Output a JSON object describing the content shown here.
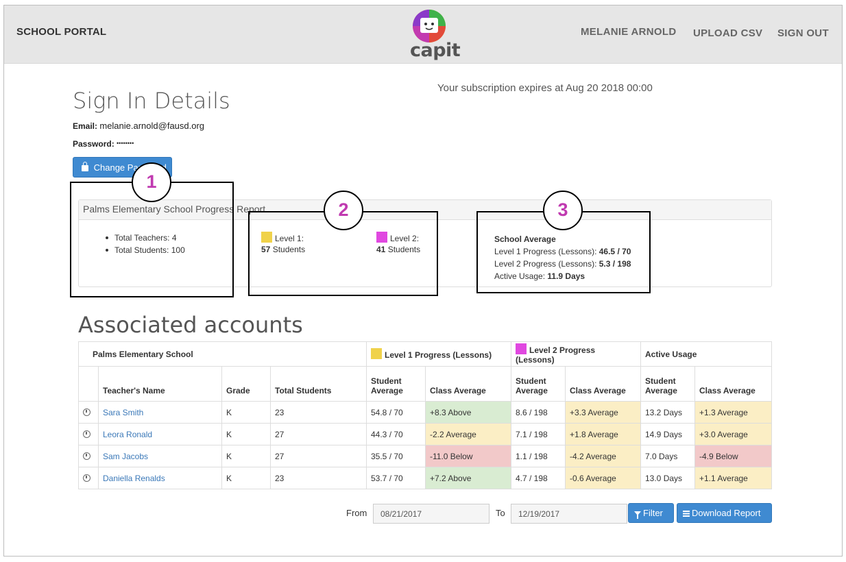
{
  "header": {
    "brand": "SCHOOL PORTAL",
    "logo_text": "capit",
    "nav": [
      "MELANIE ARNOLD",
      "UPLOAD CSV",
      "SIGN OUT"
    ]
  },
  "signin": {
    "title": "Sign In Details",
    "subscription": "Your subscription expires at Aug 20 2018 00:00",
    "email_label": "Email:",
    "email_value": "melanie.arnold@fausd.org",
    "password_label": "Password:",
    "password_value": "••••••••",
    "change_password_label": "Change Password"
  },
  "report": {
    "title": "Palms Elementary School Progress Report",
    "total_teachers": "Total Teachers: 4",
    "total_students": "Total Students: 100",
    "level1_label": "Level 1:",
    "level1_count": "57",
    "level1_suffix": "Students",
    "level2_label": "Level 2:",
    "level2_count": "41",
    "level2_suffix": "Students",
    "school_avg_title": "School Average",
    "l1_progress_label": "Level 1 Progress (Lessons):",
    "l1_progress_value": "46.5 / 70",
    "l2_progress_label": "Level 2 Progress (Lessons):",
    "l2_progress_value": "5.3 / 198",
    "usage_label": "Active Usage:",
    "usage_value": "11.9 Days",
    "level1_color": "#f0d24a",
    "level2_color": "#e048e0"
  },
  "annotations": [
    "1",
    "2",
    "3"
  ],
  "accounts": {
    "title": "Associated accounts",
    "school": "Palms Elementary School",
    "group_l1": "Level 1 Progress (Lessons)",
    "group_l2": "Level 2 Progress (Lessons)",
    "group_usage": "Active Usage",
    "headers": {
      "teacher": "Teacher's Name",
      "grade": "Grade",
      "total": "Total Students",
      "student_avg": "Student Average",
      "class_avg": "Class Average"
    },
    "rows": [
      {
        "name": "Sara Smith",
        "grade": "K",
        "total": "23",
        "l1_sa": "54.8 / 70",
        "l1_ca": "+8.3 Above",
        "l1_status": "green",
        "l2_sa": "8.6 / 198",
        "l2_ca": "+3.3 Average",
        "l2_status": "yellow",
        "u_sa": "13.2 Days",
        "u_ca": "+1.3 Average",
        "u_status": "yellow"
      },
      {
        "name": "Leora Ronald",
        "grade": "K",
        "total": "27",
        "l1_sa": "44.3 / 70",
        "l1_ca": "-2.2 Average",
        "l1_status": "yellow",
        "l2_sa": "7.1 / 198",
        "l2_ca": "+1.8 Average",
        "l2_status": "yellow",
        "u_sa": "14.9 Days",
        "u_ca": "+3.0 Average",
        "u_status": "yellow"
      },
      {
        "name": "Sam Jacobs",
        "grade": "K",
        "total": "27",
        "l1_sa": "35.5 / 70",
        "l1_ca": "-11.0 Below",
        "l1_status": "red",
        "l2_sa": "1.1 / 198",
        "l2_ca": "-4.2 Average",
        "l2_status": "yellow",
        "u_sa": "7.0 Days",
        "u_ca": "-4.9 Below",
        "u_status": "red"
      },
      {
        "name": "Daniella Renalds",
        "grade": "K",
        "total": "23",
        "l1_sa": "53.7 / 70",
        "l1_ca": "+7.2 Above",
        "l1_status": "green",
        "l2_sa": "4.7 / 198",
        "l2_ca": "-0.6 Average",
        "l2_status": "yellow",
        "u_sa": "13.0 Days",
        "u_ca": "+1.1 Average",
        "u_status": "yellow"
      }
    ]
  },
  "filter": {
    "from_label": "From",
    "from_value": "08/21/2017",
    "to_label": "To",
    "to_value": "12/19/2017",
    "filter_label": "Filter",
    "download_label": "Download Report"
  }
}
